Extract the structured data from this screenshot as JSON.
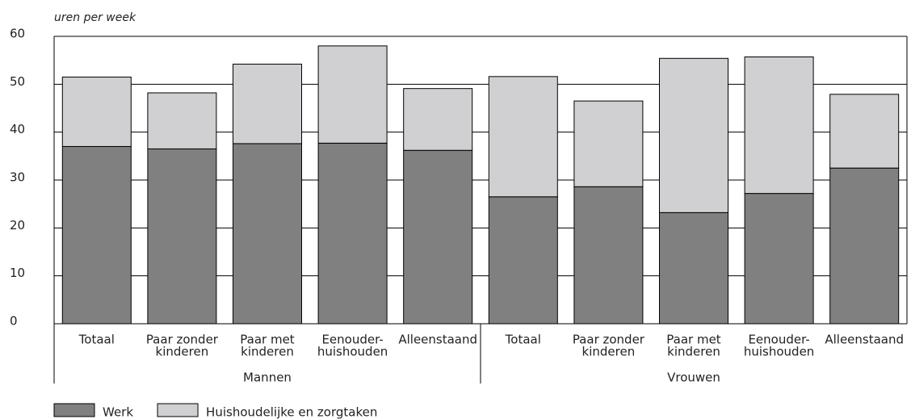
{
  "chart_data": {
    "type": "stacked-bar",
    "y_label": "uren per week",
    "groups": [
      {
        "name": "Mannen",
        "categories": [
          [
            "Totaal"
          ],
          [
            "Paar zonder",
            "kinderen"
          ],
          [
            "Paar met",
            "kinderen"
          ],
          [
            "Eenouder-",
            "huishouden"
          ],
          [
            "Alleenstaand"
          ]
        ]
      },
      {
        "name": "Vrouwen",
        "categories": [
          [
            "Totaal"
          ],
          [
            "Paar zonder",
            "kinderen"
          ],
          [
            "Paar met",
            "kinderen"
          ],
          [
            "Eenouder-",
            "huishouden"
          ],
          [
            "Alleenstaand"
          ]
        ]
      }
    ],
    "series": [
      {
        "name": "Werk",
        "color": "#808080",
        "values": [
          37,
          36.5,
          37.6,
          37.7,
          36.2,
          26.5,
          28.6,
          23.2,
          27.2,
          32.5
        ]
      },
      {
        "name": "Huishoudelijke en zorgtaken",
        "color": "#d0d0d2",
        "values": [
          14.5,
          11.7,
          16.6,
          20.3,
          12.9,
          25.1,
          17.9,
          32.2,
          28.5,
          15.4
        ]
      }
    ],
    "ylim": [
      0,
      60
    ],
    "yticks": [
      0,
      10,
      20,
      30,
      40,
      50,
      60
    ],
    "grid": true
  }
}
